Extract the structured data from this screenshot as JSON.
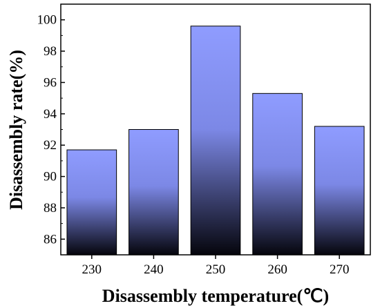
{
  "chart_data": {
    "type": "bar",
    "categories": [
      "230",
      "240",
      "250",
      "260",
      "270"
    ],
    "values": [
      91.7,
      93.0,
      99.6,
      95.3,
      93.2
    ],
    "xlabel": "Disassembly temperature(℃)",
    "ylabel": "Disassembly rate(%)",
    "ylim": [
      85,
      101
    ],
    "yticks": [
      "86",
      "88",
      "90",
      "92",
      "94",
      "96",
      "98",
      "100"
    ],
    "grid": false,
    "legend": "none",
    "colors": {
      "bar_top": "#8f9cff",
      "bar_bottom": "#05050c",
      "bar_edge": "#000000",
      "axis": "#000000"
    }
  }
}
